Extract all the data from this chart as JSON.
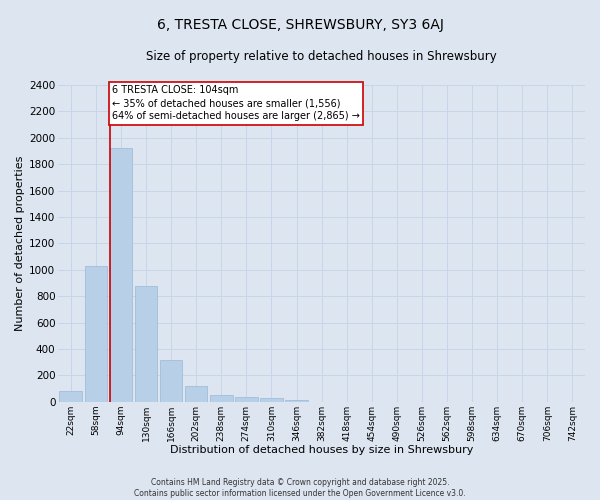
{
  "title": "6, TRESTA CLOSE, SHREWSBURY, SY3 6AJ",
  "subtitle": "Size of property relative to detached houses in Shrewsbury",
  "xlabel": "Distribution of detached houses by size in Shrewsbury",
  "ylabel": "Number of detached properties",
  "categories": [
    "22sqm",
    "58sqm",
    "94sqm",
    "130sqm",
    "166sqm",
    "202sqm",
    "238sqm",
    "274sqm",
    "310sqm",
    "346sqm",
    "382sqm",
    "418sqm",
    "454sqm",
    "490sqm",
    "526sqm",
    "562sqm",
    "598sqm",
    "634sqm",
    "670sqm",
    "706sqm",
    "742sqm"
  ],
  "bar_heights": [
    80,
    1030,
    1920,
    880,
    315,
    120,
    50,
    38,
    28,
    10,
    0,
    0,
    0,
    0,
    0,
    0,
    0,
    0,
    0,
    0,
    0
  ],
  "bar_color": "#b8cfe8",
  "bar_edge_color": "#9ab8d8",
  "grid_color": "#c8d4e8",
  "background_color": "#dde5f0",
  "vline_color": "#cc0000",
  "annotation_text": "6 TRESTA CLOSE: 104sqm\n← 35% of detached houses are smaller (1,556)\n64% of semi-detached houses are larger (2,865) →",
  "annotation_box_color": "#ffffff",
  "annotation_box_edge": "#cc0000",
  "ylim": [
    0,
    2400
  ],
  "yticks": [
    0,
    200,
    400,
    600,
    800,
    1000,
    1200,
    1400,
    1600,
    1800,
    2000,
    2200,
    2400
  ],
  "footer_line1": "Contains HM Land Registry data © Crown copyright and database right 2025.",
  "footer_line2": "Contains public sector information licensed under the Open Government Licence v3.0."
}
